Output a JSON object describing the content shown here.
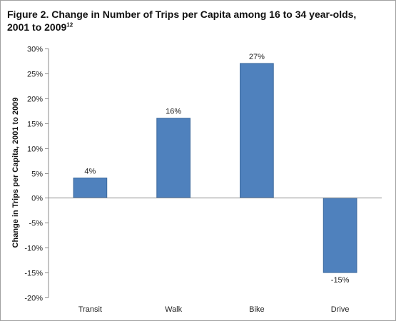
{
  "chart_data": {
    "type": "bar",
    "title": "Figure 2. Change in Number of Trips per Capita among 16 to 34 year-olds, 2001 to 2009",
    "title_superscript": "12",
    "categories": [
      "Transit",
      "Walk",
      "Bike",
      "Drive"
    ],
    "values": [
      4,
      16,
      27,
      -15
    ],
    "data_labels": [
      "4%",
      "16%",
      "27%",
      "-15%"
    ],
    "ylabel": "Change in Trips per Capita, 2001 to 2009",
    "xlabel": "",
    "ylim": [
      -20,
      30
    ],
    "yticks": [
      30,
      25,
      20,
      15,
      10,
      5,
      0,
      -5,
      -10,
      -15,
      -20
    ],
    "ytick_labels": [
      "30%",
      "25%",
      "20%",
      "15%",
      "10%",
      "5%",
      "0%",
      "-5%",
      "-10%",
      "-15%",
      "-20%"
    ],
    "grid": false,
    "legend": "none",
    "bar_color": "#4f81bd"
  }
}
